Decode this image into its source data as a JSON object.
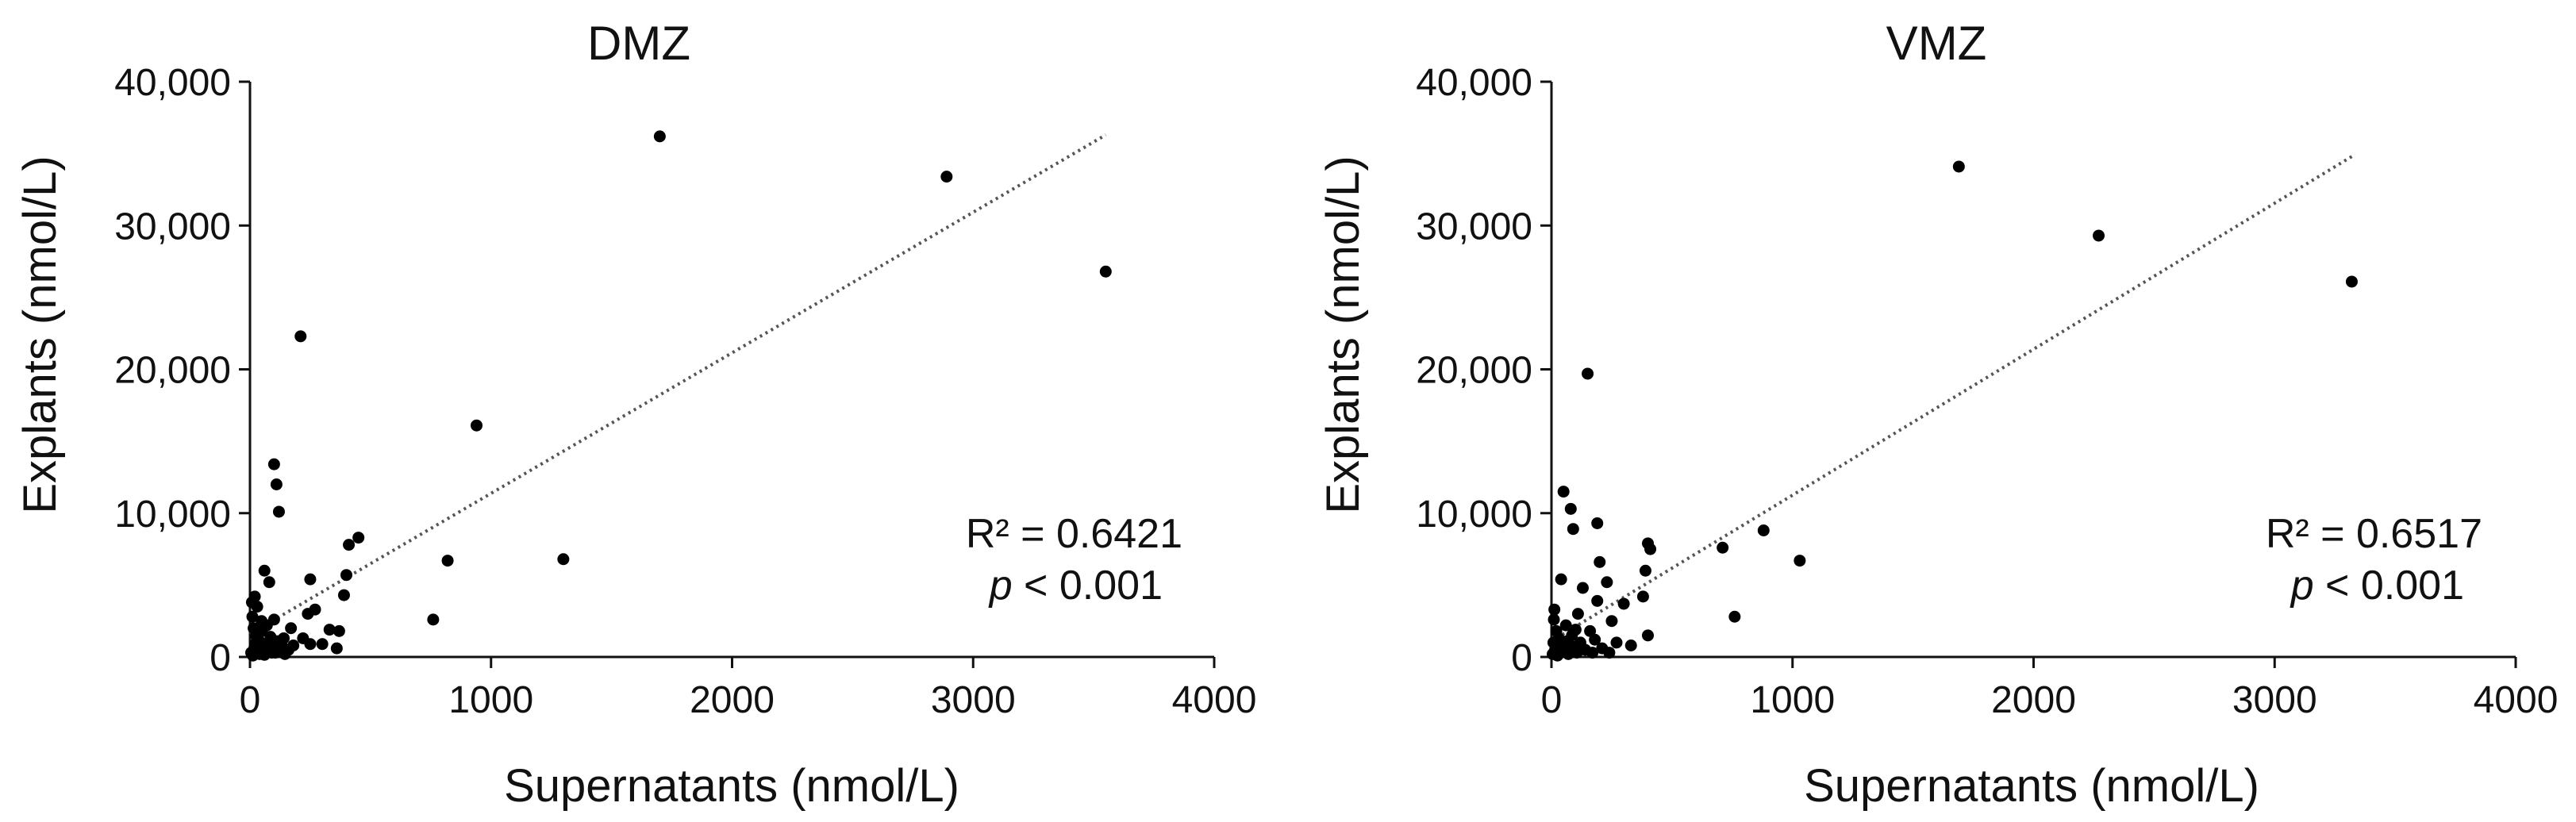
{
  "chart_data": [
    {
      "type": "scatter",
      "title": "DMZ",
      "xlabel": "Supernatants (nmol/L)",
      "ylabel": "Explants (nmol/L)",
      "xlim": [
        0,
        4000
      ],
      "ylim": [
        0,
        40000
      ],
      "x_ticks": [
        "0",
        "1000",
        "2000",
        "3000",
        "4000"
      ],
      "y_ticks": [
        "0",
        "10,000",
        "20,000",
        "30,000",
        "40,000"
      ],
      "r2_text": "R² = 0.6421",
      "p_symbol": "p",
      "p_text": " < 0.001",
      "trendline": {
        "x1": 0,
        "y1": 1600,
        "x2": 3550,
        "y2": 36300
      },
      "points": [
        {
          "x": 1700,
          "y": 36200
        },
        {
          "x": 2890,
          "y": 33400
        },
        {
          "x": 3550,
          "y": 26800
        },
        {
          "x": 210,
          "y": 22300
        },
        {
          "x": 940,
          "y": 16100
        },
        {
          "x": 100,
          "y": 13400
        },
        {
          "x": 110,
          "y": 12000
        },
        {
          "x": 120,
          "y": 10100
        },
        {
          "x": 450,
          "y": 8300
        },
        {
          "x": 410,
          "y": 7800
        },
        {
          "x": 1300,
          "y": 6800
        },
        {
          "x": 820,
          "y": 6700
        },
        {
          "x": 60,
          "y": 6000
        },
        {
          "x": 250,
          "y": 5400
        },
        {
          "x": 400,
          "y": 5700
        },
        {
          "x": 80,
          "y": 5200
        },
        {
          "x": 390,
          "y": 4300
        },
        {
          "x": 20,
          "y": 4200
        },
        {
          "x": 270,
          "y": 3300
        },
        {
          "x": 240,
          "y": 3000
        },
        {
          "x": 30,
          "y": 3500
        },
        {
          "x": 760,
          "y": 2600
        },
        {
          "x": 100,
          "y": 2600
        },
        {
          "x": 330,
          "y": 1900
        },
        {
          "x": 370,
          "y": 1800
        },
        {
          "x": 170,
          "y": 2000
        },
        {
          "x": 220,
          "y": 1300
        },
        {
          "x": 250,
          "y": 900
        },
        {
          "x": 300,
          "y": 900
        },
        {
          "x": 360,
          "y": 600
        },
        {
          "x": 10,
          "y": 2800
        },
        {
          "x": 15,
          "y": 2000
        },
        {
          "x": 25,
          "y": 1500
        },
        {
          "x": 35,
          "y": 1200
        },
        {
          "x": 45,
          "y": 1000
        },
        {
          "x": 55,
          "y": 700
        },
        {
          "x": 65,
          "y": 500
        },
        {
          "x": 75,
          "y": 900
        },
        {
          "x": 85,
          "y": 1400
        },
        {
          "x": 95,
          "y": 600
        },
        {
          "x": 105,
          "y": 300
        },
        {
          "x": 115,
          "y": 1100
        },
        {
          "x": 125,
          "y": 400
        },
        {
          "x": 135,
          "y": 700
        },
        {
          "x": 145,
          "y": 200
        },
        {
          "x": 5,
          "y": 300
        },
        {
          "x": 12,
          "y": 100
        },
        {
          "x": 18,
          "y": 600
        },
        {
          "x": 28,
          "y": 400
        },
        {
          "x": 40,
          "y": 200
        },
        {
          "x": 50,
          "y": 1800
        },
        {
          "x": 70,
          "y": 2200
        },
        {
          "x": 90,
          "y": 300
        },
        {
          "x": 160,
          "y": 500
        },
        {
          "x": 8,
          "y": 3800
        },
        {
          "x": 22,
          "y": 900
        },
        {
          "x": 60,
          "y": 150
        },
        {
          "x": 140,
          "y": 1300
        },
        {
          "x": 180,
          "y": 800
        },
        {
          "x": 48,
          "y": 2500
        }
      ]
    },
    {
      "type": "scatter",
      "title": "VMZ",
      "xlabel": "Supernatants (nmol/L)",
      "ylabel": "Explants (nmol/L)",
      "xlim": [
        0,
        4000
      ],
      "ylim": [
        0,
        40000
      ],
      "x_ticks": [
        "0",
        "1000",
        "2000",
        "3000",
        "4000"
      ],
      "y_ticks": [
        "0",
        "10,000",
        "20,000",
        "30,000",
        "40,000"
      ],
      "r2_text": "R² = 0.6517",
      "p_symbol": "p",
      "p_text": " < 0.001",
      "trendline": {
        "x1": 0,
        "y1": 1100,
        "x2": 3320,
        "y2": 34800
      },
      "points": [
        {
          "x": 1690,
          "y": 34100
        },
        {
          "x": 2270,
          "y": 29300
        },
        {
          "x": 3320,
          "y": 26100
        },
        {
          "x": 150,
          "y": 19700
        },
        {
          "x": 50,
          "y": 11500
        },
        {
          "x": 80,
          "y": 10300
        },
        {
          "x": 90,
          "y": 8900
        },
        {
          "x": 190,
          "y": 9300
        },
        {
          "x": 400,
          "y": 7900
        },
        {
          "x": 410,
          "y": 7500
        },
        {
          "x": 880,
          "y": 8800
        },
        {
          "x": 710,
          "y": 7600
        },
        {
          "x": 1030,
          "y": 6700
        },
        {
          "x": 200,
          "y": 6600
        },
        {
          "x": 390,
          "y": 6000
        },
        {
          "x": 40,
          "y": 5400
        },
        {
          "x": 230,
          "y": 5200
        },
        {
          "x": 130,
          "y": 4800
        },
        {
          "x": 380,
          "y": 4200
        },
        {
          "x": 190,
          "y": 3900
        },
        {
          "x": 300,
          "y": 3700
        },
        {
          "x": 760,
          "y": 2800
        },
        {
          "x": 110,
          "y": 3000
        },
        {
          "x": 250,
          "y": 2500
        },
        {
          "x": 400,
          "y": 1500
        },
        {
          "x": 160,
          "y": 1800
        },
        {
          "x": 270,
          "y": 1000
        },
        {
          "x": 210,
          "y": 600
        },
        {
          "x": 330,
          "y": 800
        },
        {
          "x": 10,
          "y": 2600
        },
        {
          "x": 20,
          "y": 1800
        },
        {
          "x": 30,
          "y": 1300
        },
        {
          "x": 45,
          "y": 900
        },
        {
          "x": 55,
          "y": 600
        },
        {
          "x": 65,
          "y": 1100
        },
        {
          "x": 75,
          "y": 400
        },
        {
          "x": 85,
          "y": 1500
        },
        {
          "x": 95,
          "y": 700
        },
        {
          "x": 105,
          "y": 300
        },
        {
          "x": 120,
          "y": 1000
        },
        {
          "x": 140,
          "y": 500
        },
        {
          "x": 5,
          "y": 200
        },
        {
          "x": 15,
          "y": 500
        },
        {
          "x": 25,
          "y": 100
        },
        {
          "x": 35,
          "y": 400
        },
        {
          "x": 60,
          "y": 2200
        },
        {
          "x": 70,
          "y": 200
        },
        {
          "x": 100,
          "y": 1900
        },
        {
          "x": 170,
          "y": 300
        },
        {
          "x": 12,
          "y": 3300
        },
        {
          "x": 48,
          "y": 700
        },
        {
          "x": 180,
          "y": 1200
        },
        {
          "x": 240,
          "y": 300
        },
        {
          "x": 8,
          "y": 1000
        }
      ]
    }
  ]
}
